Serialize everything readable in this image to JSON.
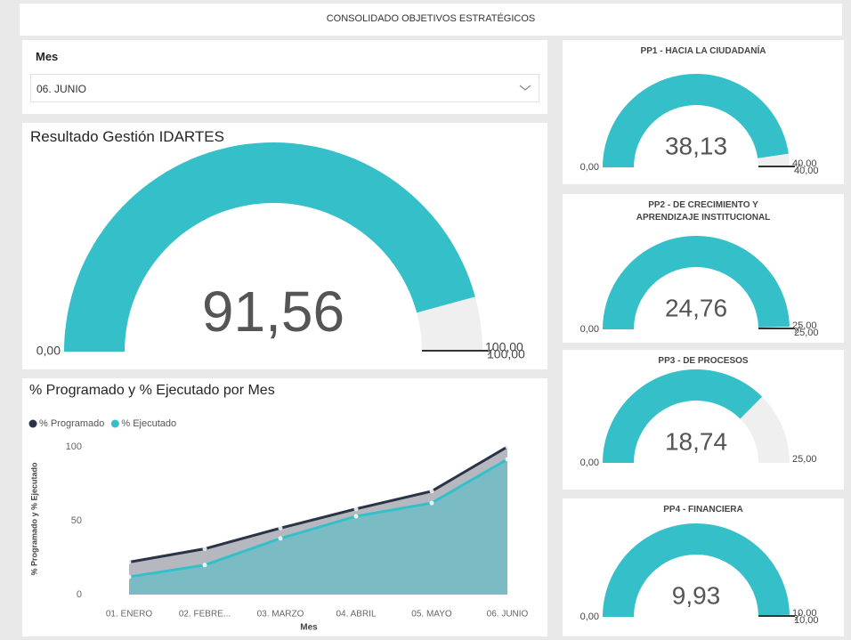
{
  "title": "CONSOLIDADO OBJETIVOS ESTRATÉGICOS",
  "slicer": {
    "label": "Mes",
    "value": "06. JUNIO"
  },
  "chart_data": [
    {
      "type": "gauge",
      "title": "Resultado Gestión IDARTES",
      "values": [
        91.56
      ],
      "value_labels": [
        "91,56"
      ],
      "color": "#35c0c9",
      "track_color": "#efefef",
      "ylim": [
        0,
        100
      ],
      "yticks": [
        {
          "value": 0,
          "label": "0,00"
        },
        {
          "value": 100,
          "label": "100,00"
        }
      ],
      "target": {
        "value": 100,
        "label": "100,00"
      }
    },
    {
      "type": "gauge",
      "title": "PP1 - HACIA LA CIUDADANÍA",
      "values": [
        38.13
      ],
      "value_labels": [
        "38,13"
      ],
      "color": "#35c0c9",
      "track_color": "#efefef",
      "ylim": [
        0,
        40
      ],
      "yticks": [
        {
          "value": 0,
          "label": "0,00"
        },
        {
          "value": 40,
          "label": "40,00"
        }
      ],
      "target": {
        "value": 40,
        "label": "40,00"
      }
    },
    {
      "type": "gauge",
      "title": "PP2 - DE CRECIMIENTO Y APRENDIZAJE INSTITUCIONAL",
      "values": [
        24.76
      ],
      "value_labels": [
        "24,76"
      ],
      "color": "#35c0c9",
      "track_color": "#efefef",
      "ylim": [
        0,
        25
      ],
      "yticks": [
        {
          "value": 0,
          "label": "0,00"
        },
        {
          "value": 25,
          "label": "25,00"
        }
      ],
      "target": {
        "value": 25,
        "label": "25,00"
      }
    },
    {
      "type": "gauge",
      "title": "PP3 - DE PROCESOS",
      "values": [
        18.74
      ],
      "value_labels": [
        "18,74"
      ],
      "color": "#35c0c9",
      "track_color": "#efefef",
      "ylim": [
        0,
        25
      ],
      "yticks": [
        {
          "value": 0,
          "label": "0,00"
        },
        {
          "value": 25,
          "label": "25,00"
        }
      ]
    },
    {
      "type": "gauge",
      "title": "PP4 - FINANCIERA",
      "values": [
        9.93
      ],
      "value_labels": [
        "9,93"
      ],
      "color": "#35c0c9",
      "track_color": "#efefef",
      "ylim": [
        0,
        10
      ],
      "yticks": [
        {
          "value": 0,
          "label": "0,00"
        },
        {
          "value": 10,
          "label": "10,00"
        }
      ],
      "target": {
        "value": 10,
        "label": "10,00"
      }
    },
    {
      "type": "area",
      "title": "% Programado y % Ejecutado por Mes",
      "x_label": "Mes",
      "y_label": "% Programado y % Ejecutado",
      "categories": [
        "01. ENERO",
        "02. FEBRE...",
        "03. MARZO",
        "04. ABRIL",
        "05. MAYO",
        "06. JUNIO"
      ],
      "series": [
        {
          "name": "% Programado",
          "color": "#2b3447",
          "values": [
            22,
            31,
            45,
            58,
            70,
            100
          ]
        },
        {
          "name": "% Ejecutado",
          "color": "#35c0c9",
          "values": [
            12,
            20,
            38,
            53,
            62,
            91.56
          ]
        }
      ],
      "ylim": [
        0,
        103
      ],
      "yticks": [
        0,
        50,
        100
      ],
      "legend": "top-left"
    }
  ]
}
